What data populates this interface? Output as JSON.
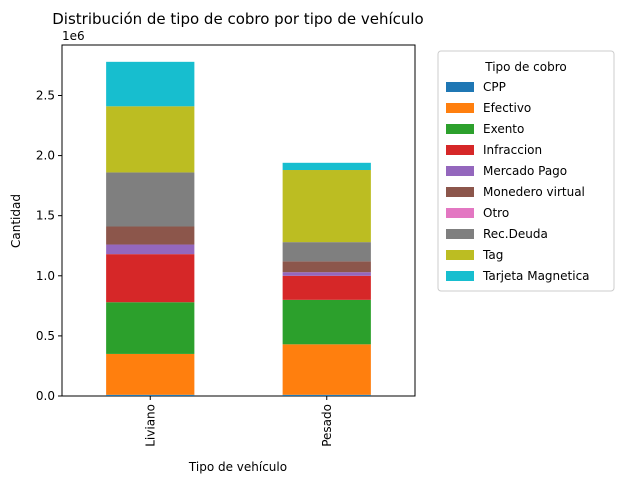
{
  "chart_data": {
    "type": "bar",
    "stacked": true,
    "title": "Distribución de tipo de cobro por tipo de vehículo",
    "xlabel": "Tipo de vehículo",
    "ylabel": "Cantidad",
    "y_offset_text": "1e6",
    "ylim": [
      0,
      2.92
    ],
    "yticks": [
      "0.0",
      "0.5",
      "1.0",
      "1.5",
      "2.0",
      "2.5"
    ],
    "ytick_values": [
      0,
      0.5,
      1.0,
      1.5,
      2.0,
      2.5
    ],
    "categories": [
      "Liviano",
      "Pesado"
    ],
    "legend": {
      "title": "Tipo de cobro",
      "placement": "outside-right"
    },
    "series": [
      {
        "name": "CPP",
        "color": "#1f77b4",
        "values": [
          0.01,
          0.01
        ]
      },
      {
        "name": "Efectivo",
        "color": "#ff7f0e",
        "values": [
          0.34,
          0.42
        ]
      },
      {
        "name": "Exento",
        "color": "#2ca02c",
        "values": [
          0.43,
          0.37
        ]
      },
      {
        "name": "Infraccion",
        "color": "#d62728",
        "values": [
          0.4,
          0.2
        ]
      },
      {
        "name": "Mercado Pago",
        "color": "#9467bd",
        "values": [
          0.08,
          0.03
        ]
      },
      {
        "name": "Monedero virtual",
        "color": "#8c564b",
        "values": [
          0.15,
          0.09
        ]
      },
      {
        "name": "Otro",
        "color": "#e377c2",
        "values": [
          0.0,
          0.0
        ]
      },
      {
        "name": "Rec.Deuda",
        "color": "#7f7f7f",
        "values": [
          0.45,
          0.16
        ]
      },
      {
        "name": "Tag",
        "color": "#bcbd22",
        "values": [
          0.55,
          0.6
        ]
      },
      {
        "name": "Tarjeta Magnetica",
        "color": "#17becf",
        "values": [
          0.37,
          0.06
        ]
      }
    ]
  }
}
